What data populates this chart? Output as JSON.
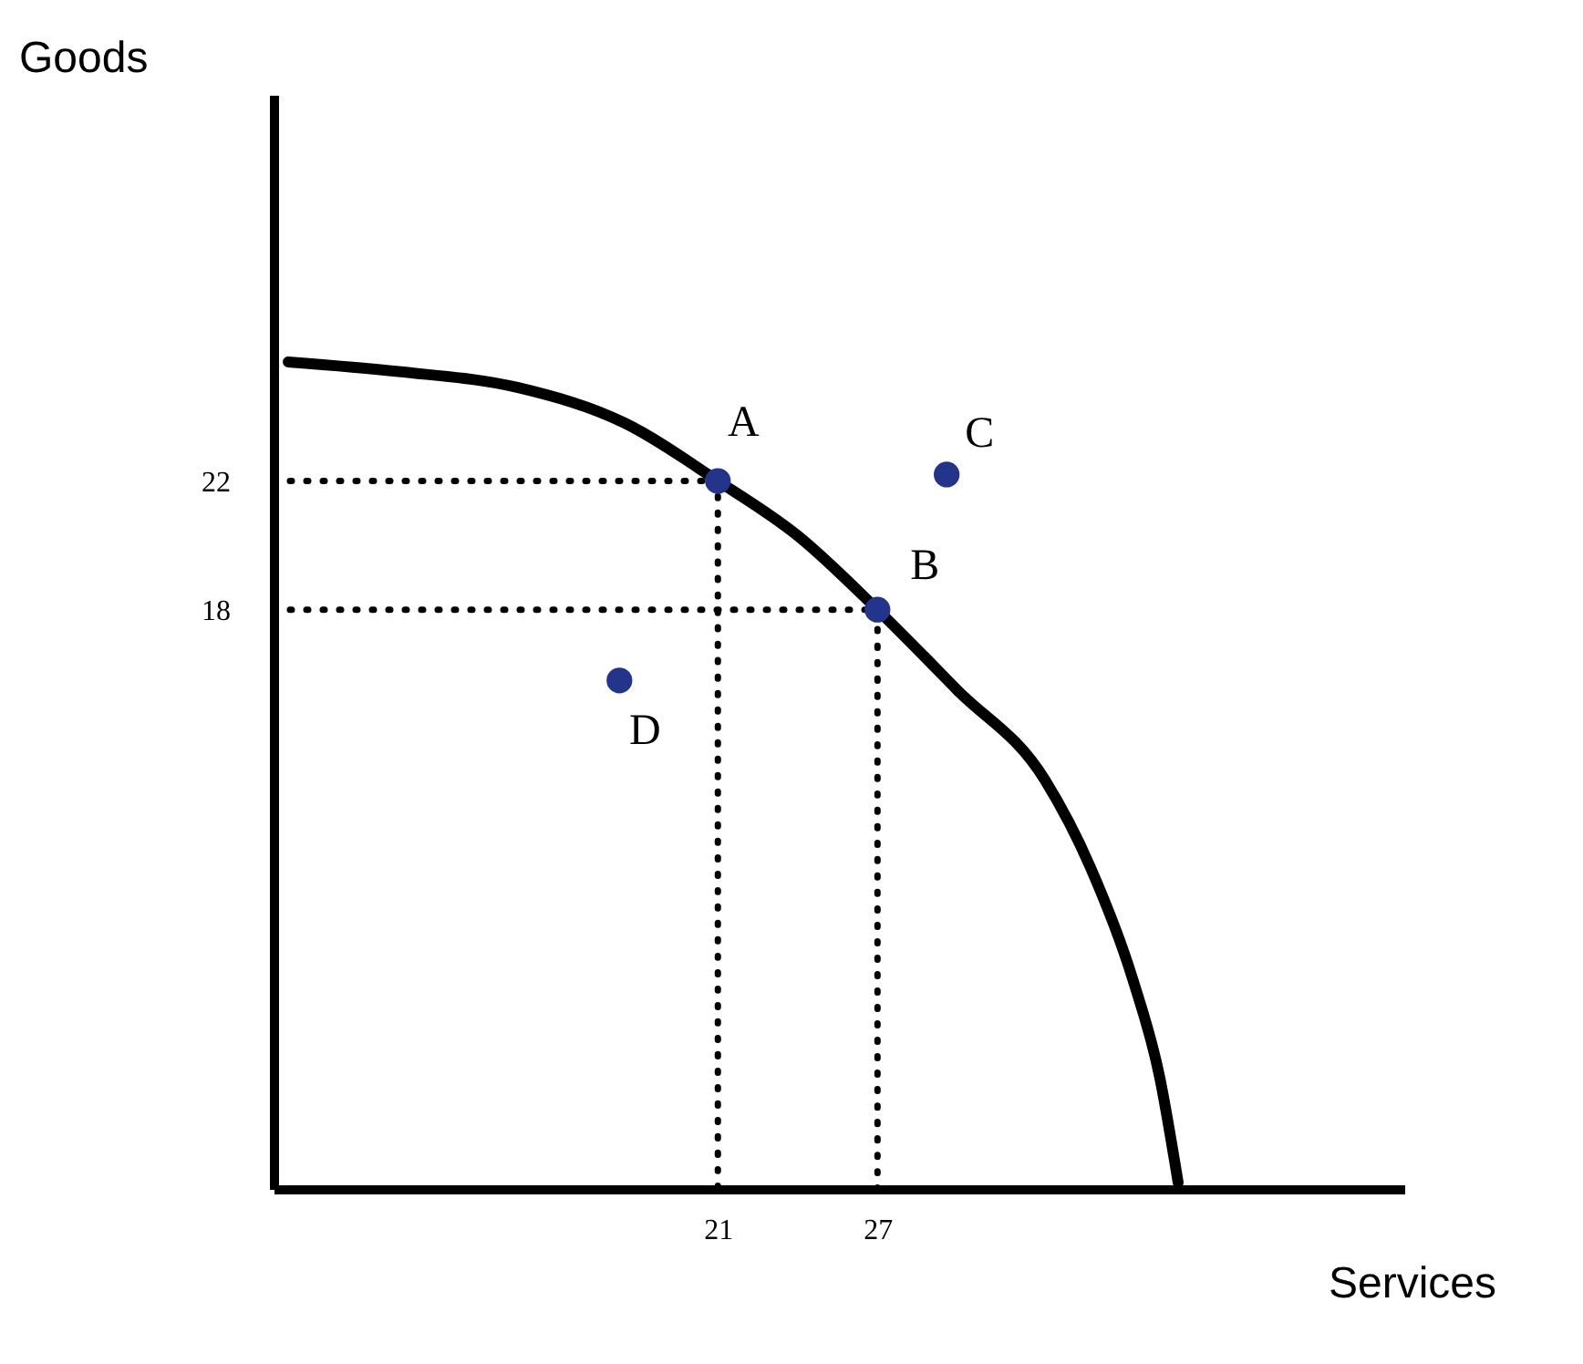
{
  "chart_data": {
    "type": "line",
    "xlabel": "Services",
    "ylabel": "Goods",
    "xlim": [
      4.3,
      46.8
    ],
    "ylim": [
      0,
      34
    ],
    "xticks": [
      21,
      27
    ],
    "yticks": [
      18,
      22
    ],
    "grid": false,
    "series": [
      {
        "color": "#000000",
        "line_style": "solid",
        "marker": "none",
        "x": [
          4.85,
          9,
          13.5,
          17.5,
          21,
          24,
          27,
          30,
          33.3,
          35,
          36.6,
          37.6,
          38.3
        ],
        "values": [
          25.7,
          25.4,
          24.9,
          23.8,
          22,
          20.3,
          18,
          15.5,
          12.7,
          10,
          6.5,
          3.5,
          0.2
        ]
      },
      {
        "color": "#000000",
        "line_style": "dotted",
        "marker": "none",
        "x": [
          4.3,
          21,
          21
        ],
        "values": [
          22,
          22,
          0
        ]
      },
      {
        "color": "#000000",
        "line_style": "dotted",
        "marker": "none",
        "x": [
          4.3,
          27,
          27
        ],
        "values": [
          18,
          18,
          0
        ]
      },
      {
        "type": "scatter",
        "color": "#24348a",
        "marker": "circle",
        "x": [
          21,
          27,
          29.6,
          17.3
        ],
        "values": [
          22,
          18,
          22.2,
          15.8
        ]
      }
    ],
    "annotations": [
      {
        "text": "A",
        "x": 21,
        "y": 22
      },
      {
        "text": "B",
        "x": 27,
        "y": 18
      },
      {
        "text": "C",
        "x": 29.6,
        "y": 22.2
      },
      {
        "text": "D",
        "x": 17.3,
        "y": 15.8
      }
    ]
  }
}
